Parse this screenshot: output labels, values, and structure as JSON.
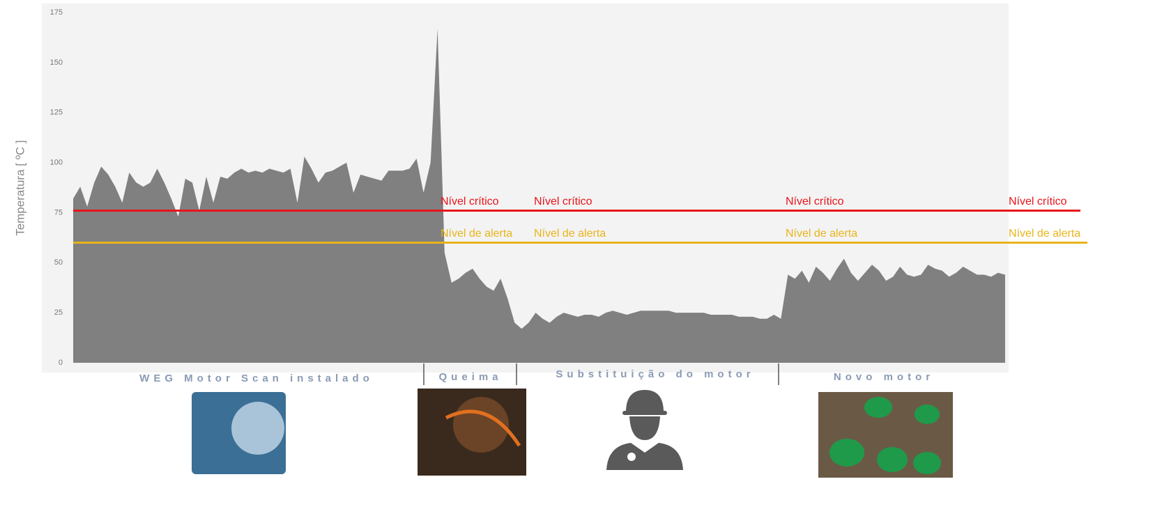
{
  "chart_data": {
    "type": "area",
    "y_label": "Temperatura [ ºC ]",
    "color": "#808080",
    "ylim": [
      0,
      175
    ],
    "yticks": [
      0,
      25,
      50,
      75,
      100,
      125,
      150,
      175
    ],
    "values": [
      82,
      88,
      78,
      90,
      98,
      94,
      88,
      80,
      95,
      90,
      88,
      90,
      97,
      90,
      82,
      73,
      92,
      90,
      76,
      93,
      80,
      93,
      92,
      95,
      97,
      95,
      96,
      95,
      97,
      96,
      95,
      97,
      80,
      103,
      97,
      90,
      95,
      96,
      98,
      100,
      85,
      94,
      93,
      92,
      91,
      96,
      96,
      96,
      97,
      102,
      85,
      100,
      167,
      55,
      40,
      42,
      45,
      47,
      42,
      38,
      36,
      42,
      32,
      20,
      17,
      20,
      25,
      22,
      20,
      23,
      25,
      24,
      23,
      24,
      24,
      23,
      25,
      26,
      25,
      24,
      25,
      26,
      26,
      26,
      26,
      26,
      25,
      25,
      25,
      25,
      25,
      24,
      24,
      24,
      24,
      23,
      23,
      23,
      22,
      22,
      24,
      22,
      44,
      42,
      46,
      40,
      48,
      45,
      41,
      47,
      52,
      45,
      41,
      45,
      49,
      46,
      41,
      43,
      48,
      44,
      43,
      44,
      49,
      47,
      46,
      43,
      45,
      48,
      46,
      44,
      44,
      43,
      45,
      44
    ],
    "thresholds": [
      {
        "label": "Nível crítico",
        "value": 76,
        "color": "#e8141a"
      },
      {
        "label": "Nível de alerta",
        "value": 60,
        "color": "#e8b41a"
      }
    ],
    "phases": [
      "WEG Motor Scan instalado",
      "Queima",
      "Substituição do motor",
      "Novo motor"
    ]
  }
}
